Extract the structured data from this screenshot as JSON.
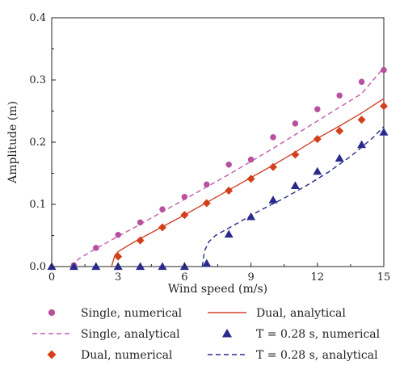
{
  "chart_data": {
    "type": "scatter",
    "xlabel": "Wind speed (m/s)",
    "ylabel": "Amplitude (m)",
    "xlim": [
      0,
      15
    ],
    "ylim": [
      0,
      0.4
    ],
    "xticks": [
      0,
      3,
      6,
      9,
      12,
      15
    ],
    "xtick_labels": [
      "0",
      "3",
      "6",
      "9",
      "12",
      "15"
    ],
    "yticks": [
      0.0,
      0.1,
      0.2,
      0.3,
      0.4
    ],
    "ytick_labels": [
      "0.0",
      "0.1",
      "0.2",
      "0.3",
      "0.4"
    ],
    "grid": false,
    "legend_position": "below",
    "series": [
      {
        "name": "Single, numerical",
        "kind": "markers",
        "marker": "circle",
        "color": "#b8509e",
        "x": [
          1,
          2,
          3,
          4,
          5,
          6,
          7,
          8,
          9,
          10,
          11,
          12,
          13,
          14,
          15
        ],
        "y": [
          0.002,
          0.03,
          0.051,
          0.071,
          0.092,
          0.112,
          0.132,
          0.164,
          0.172,
          0.208,
          0.23,
          0.253,
          0.275,
          0.297,
          0.316
        ]
      },
      {
        "name": "Single, analytical",
        "kind": "line",
        "dash": "dashed",
        "color": "#c45ab0",
        "x": [
          0.9,
          1.2,
          2,
          4,
          6,
          8,
          10,
          12,
          14,
          15
        ],
        "y": [
          0.0,
          0.012,
          0.029,
          0.068,
          0.108,
          0.148,
          0.19,
          0.234,
          0.278,
          0.32
        ]
      },
      {
        "name": "Dual, numerical",
        "kind": "markers",
        "marker": "diamond",
        "color": "#d2401c",
        "x": [
          3,
          4,
          5,
          6,
          7,
          8,
          9,
          10,
          11,
          12,
          13,
          14,
          15
        ],
        "y": [
          0.016,
          0.042,
          0.063,
          0.083,
          0.102,
          0.122,
          0.141,
          0.16,
          0.18,
          0.205,
          0.218,
          0.236,
          0.258
        ]
      },
      {
        "name": "Dual, analytical",
        "kind": "line",
        "dash": "solid",
        "color": "#d0452a",
        "x": [
          2.7,
          2.85,
          3,
          3.5,
          4,
          5,
          6,
          7,
          8,
          9,
          10,
          11,
          12,
          13,
          14,
          15
        ],
        "y": [
          0.0,
          0.018,
          0.024,
          0.035,
          0.045,
          0.064,
          0.083,
          0.103,
          0.123,
          0.143,
          0.163,
          0.184,
          0.206,
          0.226,
          0.247,
          0.27
        ]
      },
      {
        "name": "T = 0.28 s, numerical",
        "kind": "markers",
        "marker": "triangle",
        "color": "#2a2a8c",
        "x": [
          0,
          1,
          2,
          3,
          4,
          5,
          6,
          7,
          8,
          9,
          10,
          11,
          12,
          13,
          14,
          15
        ],
        "y": [
          0.0,
          0.0,
          0.0,
          0.0,
          0.0,
          0.0,
          0.0,
          0.005,
          0.052,
          0.08,
          0.107,
          0.13,
          0.153,
          0.174,
          0.196,
          0.216
        ]
      },
      {
        "name": "T = 0.28 s, analytical",
        "kind": "line",
        "dash": "dashed",
        "color": "#2a2a8c",
        "x": [
          6.8,
          6.9,
          7.1,
          7.4,
          7.8,
          8.5,
          9.5,
          10.5,
          11.5,
          12.5,
          13.5,
          14.5,
          15
        ],
        "y": [
          0.0,
          0.025,
          0.04,
          0.05,
          0.058,
          0.072,
          0.092,
          0.11,
          0.13,
          0.152,
          0.177,
          0.207,
          0.225
        ]
      }
    ]
  }
}
